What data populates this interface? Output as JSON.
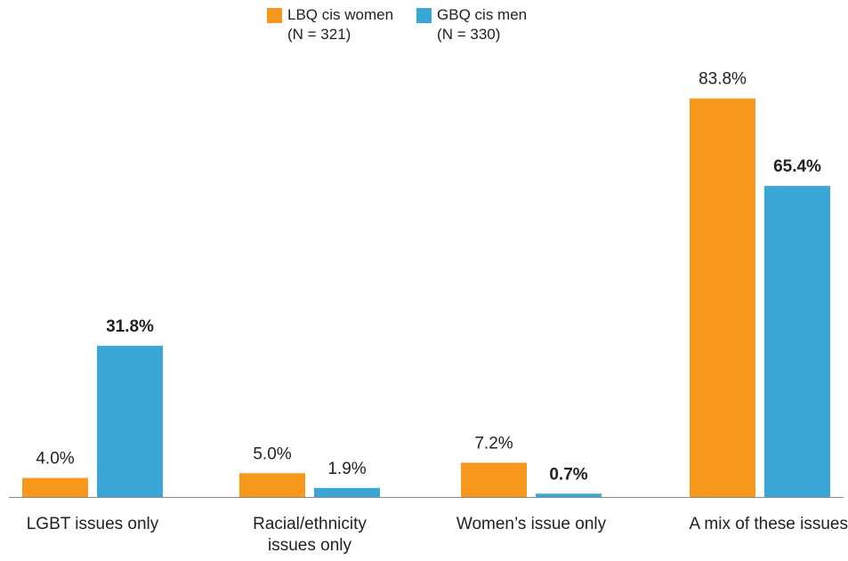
{
  "chart_data": {
    "type": "bar",
    "categories": [
      [
        "LGBT issues only"
      ],
      [
        "Racial/ethnicity",
        "issues only"
      ],
      [
        "Women’s issue only"
      ],
      [
        "A mix of these issues"
      ]
    ],
    "series": [
      {
        "name": "LBQ cis women",
        "sample": "(N = 321)",
        "color": "#f7981d",
        "values": [
          4.0,
          5.0,
          7.2,
          83.8
        ],
        "labels": [
          "4.0%",
          "5.0%",
          "7.2%",
          "83.8%"
        ],
        "bold": [
          false,
          false,
          false,
          false
        ]
      },
      {
        "name": "GBQ cis men",
        "sample": "(N = 330)",
        "color": "#3ba7d6",
        "values": [
          31.8,
          1.9,
          0.7,
          65.4
        ],
        "labels": [
          "31.8%",
          "1.9%",
          "0.7%",
          "65.4%"
        ],
        "bold": [
          true,
          false,
          true,
          true
        ]
      }
    ],
    "ylim": [
      0,
      100
    ],
    "grid": false,
    "legend_position": "top"
  }
}
